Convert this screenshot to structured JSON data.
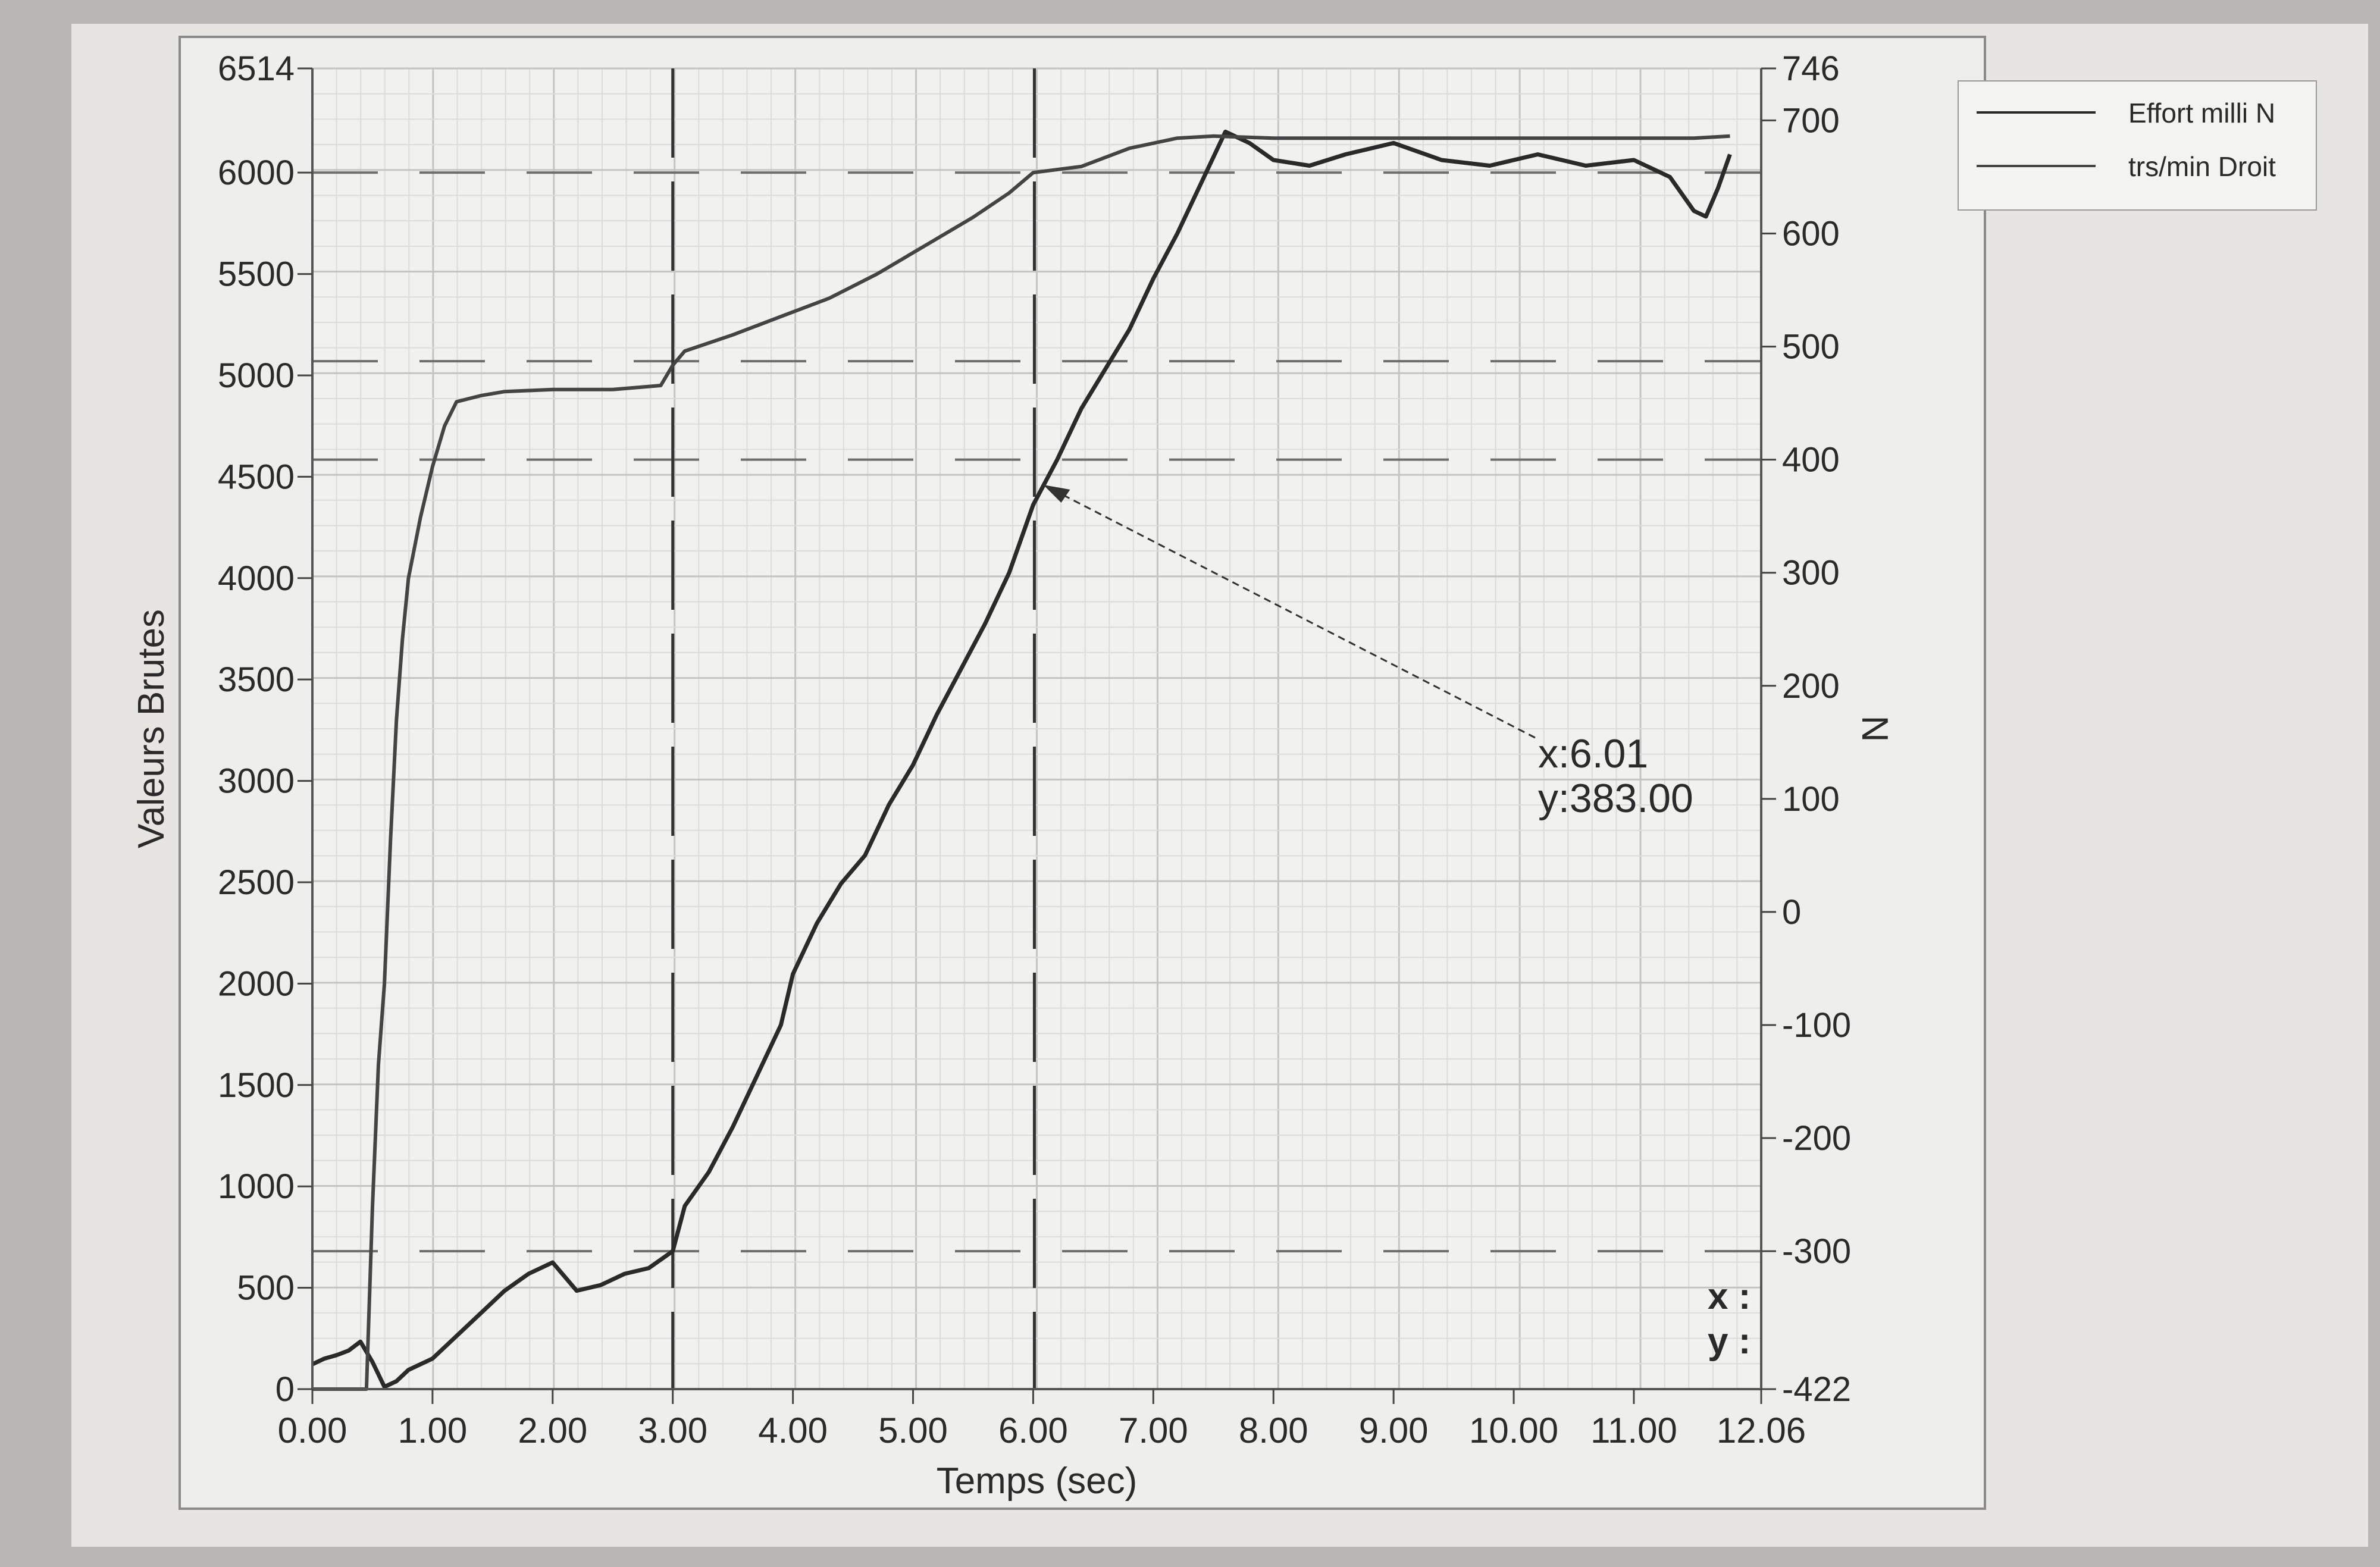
{
  "legend": {
    "items": [
      {
        "label": "Effort milli N",
        "color": "#2a2a2a"
      },
      {
        "label": "trs/min Droit",
        "color": "#444444"
      }
    ]
  },
  "chart_data": {
    "type": "line",
    "xlabel": "Temps (sec)",
    "ylabel": "Valeurs Brutes",
    "y2label": "N",
    "xlim": [
      0,
      12.06
    ],
    "ylim": [
      0,
      6514
    ],
    "y2lim": [
      -422,
      746
    ],
    "x_ticks": [
      "0.00",
      "1.00",
      "2.00",
      "3.00",
      "4.00",
      "5.00",
      "6.00",
      "7.00",
      "8.00",
      "9.00",
      "10.00",
      "11.00",
      "12.06"
    ],
    "y_ticks": [
      "0",
      "500",
      "1000",
      "1500",
      "2000",
      "2500",
      "3000",
      "3500",
      "4000",
      "4500",
      "5000",
      "5500",
      "6000",
      "6514"
    ],
    "y2_ticks": [
      "-422",
      "-300",
      "-200",
      "-100",
      "0",
      "100",
      "200",
      "300",
      "400",
      "500",
      "600",
      "700",
      "746"
    ],
    "grid": true,
    "legend_position": "top-right outside",
    "cursors_x": [
      3.0,
      6.01
    ],
    "annotation": {
      "x_text": "x:6.01",
      "y_text": "y:383.00",
      "x": 6.01,
      "y": 383.0
    },
    "readout": {
      "x_label": "x :",
      "y_label": "y :"
    },
    "series": [
      {
        "name": "Effort milli N",
        "axis": "right",
        "x": [
          0,
          0.1,
          0.2,
          0.3,
          0.4,
          0.5,
          0.6,
          0.7,
          0.8,
          0.9,
          1.0,
          1.2,
          1.4,
          1.6,
          1.8,
          2.0,
          2.2,
          2.4,
          2.6,
          2.8,
          3.0,
          3.1,
          3.3,
          3.5,
          3.7,
          3.9,
          4.0,
          4.2,
          4.4,
          4.6,
          4.8,
          5.0,
          5.2,
          5.4,
          5.6,
          5.8,
          6.0,
          6.2,
          6.4,
          6.6,
          6.8,
          7.0,
          7.2,
          7.4,
          7.6,
          7.8,
          8.0,
          8.3,
          8.6,
          9.0,
          9.4,
          9.8,
          10.2,
          10.6,
          11.0,
          11.3,
          11.5,
          11.6,
          11.7,
          11.8
        ],
        "y": [
          -400,
          -395,
          -392,
          -388,
          -380,
          -398,
          -420,
          -415,
          -405,
          -400,
          -395,
          -375,
          -355,
          -335,
          -320,
          -310,
          -335,
          -330,
          -320,
          -315,
          -300,
          -260,
          -230,
          -190,
          -145,
          -100,
          -55,
          -10,
          25,
          50,
          95,
          130,
          175,
          215,
          255,
          300,
          360,
          400,
          445,
          480,
          515,
          560,
          600,
          645,
          690,
          680,
          665,
          660,
          670,
          680,
          665,
          660,
          670,
          660,
          665,
          650,
          620,
          615,
          640,
          670
        ]
      },
      {
        "name": "trs/min Droit",
        "axis": "left",
        "x": [
          0,
          0.45,
          0.5,
          0.55,
          0.6,
          0.65,
          0.7,
          0.75,
          0.8,
          0.9,
          1.0,
          1.1,
          1.2,
          1.4,
          1.6,
          2.0,
          2.5,
          2.9,
          3.0,
          3.1,
          3.5,
          3.9,
          4.3,
          4.7,
          5.1,
          5.5,
          5.8,
          6.0,
          6.4,
          6.8,
          7.2,
          7.5,
          8.0,
          9.0,
          10.0,
          11.0,
          11.5,
          11.8
        ],
        "y": [
          0,
          0,
          900,
          1600,
          2000,
          2700,
          3300,
          3700,
          4000,
          4300,
          4550,
          4750,
          4870,
          4900,
          4920,
          4930,
          4930,
          4950,
          5050,
          5120,
          5200,
          5290,
          5380,
          5500,
          5640,
          5780,
          5900,
          6000,
          6030,
          6120,
          6170,
          6180,
          6170,
          6170,
          6170,
          6170,
          6170,
          6180
        ]
      }
    ],
    "reference_lines": [
      {
        "axis": "left",
        "y": 6000
      },
      {
        "axis": "left",
        "y": 5070
      },
      {
        "axis": "right",
        "y": 400
      },
      {
        "axis": "right",
        "y": -300
      }
    ]
  }
}
